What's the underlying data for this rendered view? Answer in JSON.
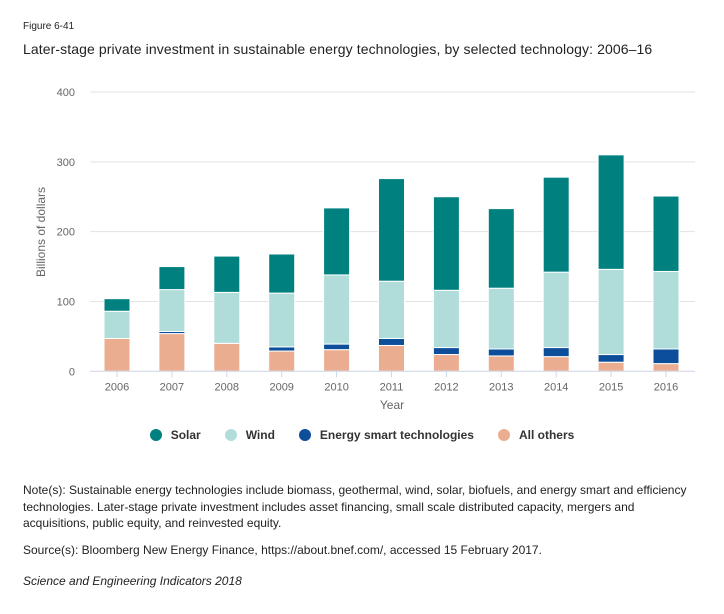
{
  "figure_label": "Figure 6-41",
  "title": "Later-stage private investment in sustainable energy technologies, by selected technology: 2006–16",
  "notes": "Note(s): Sustainable energy technologies include biomass, geothermal, wind, solar, biofuels, and energy smart and efficiency technologies. Later-stage private investment includes asset financing, small scale distributed capacity, mergers and acquisitions, public equity, and reinvested equity.",
  "source": "Source(s): Bloomberg New Energy Finance, https://about.bnef.com/, accessed 15 February 2017.",
  "credit": "Science and Engineering Indicators 2018",
  "chart_data": {
    "type": "bar",
    "stacked": true,
    "title": "Later-stage private investment in sustainable energy technologies, by selected technology: 2006–16",
    "xlabel": "Year",
    "ylabel": "Billions of dollars",
    "ylim": [
      0,
      400
    ],
    "yticks": [
      0,
      100,
      200,
      300,
      400
    ],
    "grid": true,
    "legend_position": "bottom",
    "categories": [
      "2006",
      "2007",
      "2008",
      "2009",
      "2010",
      "2011",
      "2012",
      "2013",
      "2014",
      "2015",
      "2016"
    ],
    "series": [
      {
        "name": "All others",
        "color": "#EBAD8F",
        "values": [
          47,
          54,
          40,
          29,
          31,
          37,
          24,
          22,
          21,
          13,
          11
        ]
      },
      {
        "name": "Energy smart technologies",
        "color": "#0C4E9A",
        "values": [
          0,
          3,
          0,
          6,
          8,
          10,
          10,
          10,
          13,
          11,
          21
        ]
      },
      {
        "name": "Wind",
        "color": "#B0DDD9",
        "values": [
          39,
          60,
          73,
          77,
          99,
          82,
          82,
          87,
          108,
          122,
          111
        ]
      },
      {
        "name": "Solar",
        "color": "#00817F",
        "values": [
          18,
          33,
          52,
          56,
          96,
          147,
          134,
          114,
          136,
          164,
          108
        ]
      }
    ]
  },
  "legend": [
    {
      "label": "Solar",
      "color": "#00817F"
    },
    {
      "label": "Wind",
      "color": "#B0DDD9"
    },
    {
      "label": "Energy smart technologies",
      "color": "#0C4E9A"
    },
    {
      "label": "All others",
      "color": "#EBAD8F"
    }
  ]
}
